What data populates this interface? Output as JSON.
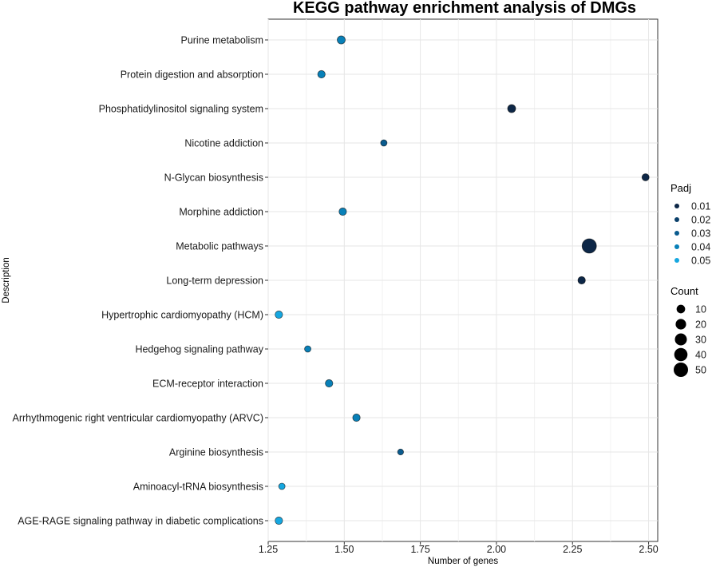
{
  "chart_data": {
    "type": "scatter",
    "title": "KEGG pathway enrichment analysis of DMGs",
    "xlabel": "Number of genes",
    "ylabel": "Description",
    "xlim": [
      1.25,
      2.53
    ],
    "xticks": [
      "1.25",
      "1.50",
      "1.75",
      "2.00",
      "2.25",
      "2.50"
    ],
    "grid": true,
    "categories": [
      "Purine metabolism",
      "Protein digestion and absorption",
      "Phosphatidylinositol signaling system",
      "Nicotine addiction",
      "N-Glycan biosynthesis",
      "Morphine addiction",
      "Metabolic pathways",
      "Long-term depression",
      "Hypertrophic cardiomyopathy (HCM)",
      "Hedgehog signaling pathway",
      "ECM-receptor interaction",
      "Arrhythmogenic right ventricular cardiomyopathy (ARVC)",
      "Arginine biosynthesis",
      "Aminoacyl-tRNA biosynthesis",
      "AGE-RAGE signaling pathway in diabetic complications"
    ],
    "points": [
      {
        "category": "Purine metabolism",
        "x": 1.49,
        "padj": 0.035,
        "count": 8
      },
      {
        "category": "Protein digestion and absorption",
        "x": 1.425,
        "padj": 0.04,
        "count": 6
      },
      {
        "category": "Phosphatidylinositol signaling system",
        "x": 2.05,
        "padj": 0.015,
        "count": 8
      },
      {
        "category": "Nicotine addiction",
        "x": 1.63,
        "padj": 0.03,
        "count": 3
      },
      {
        "category": "N-Glycan biosynthesis",
        "x": 2.49,
        "padj": 0.012,
        "count": 5
      },
      {
        "category": "Morphine addiction",
        "x": 1.495,
        "padj": 0.035,
        "count": 6
      },
      {
        "category": "Metabolic pathways",
        "x": 2.305,
        "padj": 0.012,
        "count": 50
      },
      {
        "category": "Long-term depression",
        "x": 2.28,
        "padj": 0.015,
        "count": 6
      },
      {
        "category": "Hypertrophic cardiomyopathy (HCM)",
        "x": 1.285,
        "padj": 0.05,
        "count": 6
      },
      {
        "category": "Hedgehog signaling pathway",
        "x": 1.38,
        "padj": 0.045,
        "count": 3
      },
      {
        "category": "ECM-receptor interaction",
        "x": 1.45,
        "padj": 0.04,
        "count": 6
      },
      {
        "category": "Arrhythmogenic right ventricular cardiomyopathy (ARVC)",
        "x": 1.54,
        "padj": 0.035,
        "count": 6
      },
      {
        "category": "Arginine biosynthesis",
        "x": 1.685,
        "padj": 0.025,
        "count": 2
      },
      {
        "category": "Aminoacyl-tRNA biosynthesis",
        "x": 1.295,
        "padj": 0.05,
        "count": 3
      },
      {
        "category": "AGE-RAGE signaling pathway in diabetic complications",
        "x": 1.285,
        "padj": 0.05,
        "count": 6
      }
    ],
    "legend_padj": {
      "title": "Padj",
      "labels": [
        "0.01",
        "0.02",
        "0.03",
        "0.04",
        "0.05"
      ],
      "values": [
        0.01,
        0.02,
        0.03,
        0.04,
        0.05
      ],
      "colors": [
        "#0d2747",
        "#0a3f6a",
        "#0a5b8e",
        "#0880b8",
        "#16a7e0"
      ]
    },
    "legend_count": {
      "title": "Count",
      "labels": [
        "10",
        "20",
        "30",
        "40",
        "50"
      ],
      "values": [
        10,
        20,
        30,
        40,
        50
      ]
    },
    "legend_placement": "right"
  }
}
